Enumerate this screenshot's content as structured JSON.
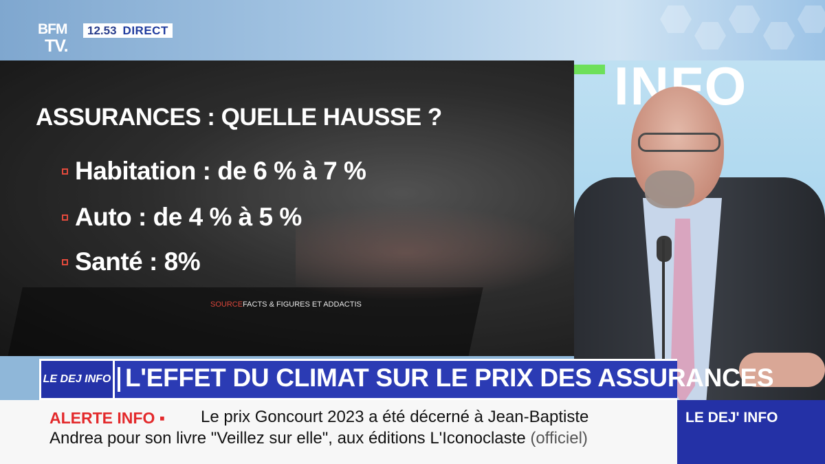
{
  "header": {
    "logo_top": "BFM",
    "logo_bottom": "TV.",
    "time": "12.53",
    "live_label": "DIRECT"
  },
  "graphic": {
    "title": "ASSURANCES : QUELLE HAUSSE ?",
    "items": [
      {
        "label": "Habitation : de 6 % à 7 %"
      },
      {
        "label": "Auto : de 4 % à 5 %"
      },
      {
        "label": "Santé : 8%"
      }
    ],
    "source_label": "SOURCE",
    "source_value": "FACTS & FIGURES ET ADDACTIS"
  },
  "backdrop": {
    "wall_text": "INFO"
  },
  "topic": {
    "logo": "LE DEJ INFO",
    "headline": "L'EFFET DU CLIMAT SUR LE PRIX DES ASSURANCES"
  },
  "ticker": {
    "alert_label": "ALERTE INFO ▪",
    "line1": "Le prix Goncourt 2023 a été décerné à Jean-Baptiste",
    "line2": "Andrea pour son livre \"Veillez sur elle\", aux éditions L'Iconoclaste",
    "line2_suffix": "(officiel)"
  },
  "brand_box": {
    "label": "LE DEJ' INFO"
  },
  "colors": {
    "accent_blue": "#2b3bb4",
    "alert_red": "#e3292b",
    "bullet_red": "#e24a3c"
  }
}
